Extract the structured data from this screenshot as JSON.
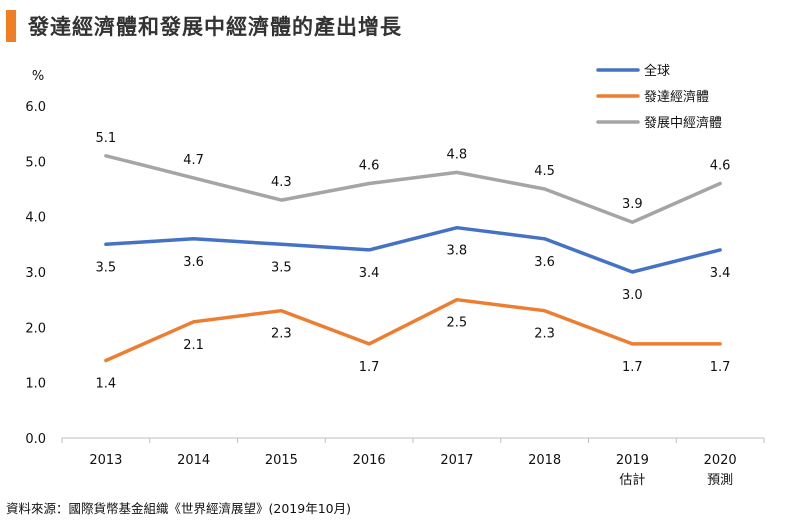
{
  "header": {
    "title": "發達經濟體和發展中經濟體的產出增長",
    "accent_color": "#F07F22"
  },
  "source": "資料來源：國際貨幣基金組織《世界經濟展望》(2019年10月)",
  "chart_data": {
    "type": "line",
    "title": "發達經濟體和發展中經濟體的產出增長",
    "ylabel": "%",
    "xlabel": "",
    "ylim": [
      0,
      6
    ],
    "yticks": [
      "0.0",
      "1.0",
      "2.0",
      "3.0",
      "4.0",
      "5.0",
      "6.0"
    ],
    "categories": [
      "2013",
      "2014",
      "2015",
      "2016",
      "2017",
      "2018",
      "2019",
      "2020"
    ],
    "category_sublabels": [
      "",
      "",
      "",
      "",
      "",
      "",
      "估計",
      "預測"
    ],
    "grid": false,
    "legend_position": "top-right",
    "series": [
      {
        "name": "全球",
        "color": "#4472C4",
        "values": [
          3.5,
          3.6,
          3.5,
          3.4,
          3.8,
          3.6,
          3.0,
          3.4
        ],
        "labels": [
          "3.5",
          "3.6",
          "3.5",
          "3.4",
          "3.8",
          "3.6",
          "3.0",
          "3.4"
        ],
        "label_side": "below"
      },
      {
        "name": "發達經濟體",
        "color": "#ED7D31",
        "values": [
          1.4,
          2.1,
          2.3,
          1.7,
          2.5,
          2.3,
          1.7,
          1.7
        ],
        "labels": [
          "1.4",
          "2.1",
          "2.3",
          "1.7",
          "2.5",
          "2.3",
          "1.7",
          "1.7"
        ],
        "label_side": "below"
      },
      {
        "name": "發展中經濟體",
        "color": "#A5A5A5",
        "values": [
          5.1,
          4.7,
          4.3,
          4.6,
          4.8,
          4.5,
          3.9,
          4.6
        ],
        "labels": [
          "5.1",
          "4.7",
          "4.3",
          "4.6",
          "4.8",
          "4.5",
          "3.9",
          "4.6"
        ],
        "label_side": "above"
      }
    ]
  }
}
